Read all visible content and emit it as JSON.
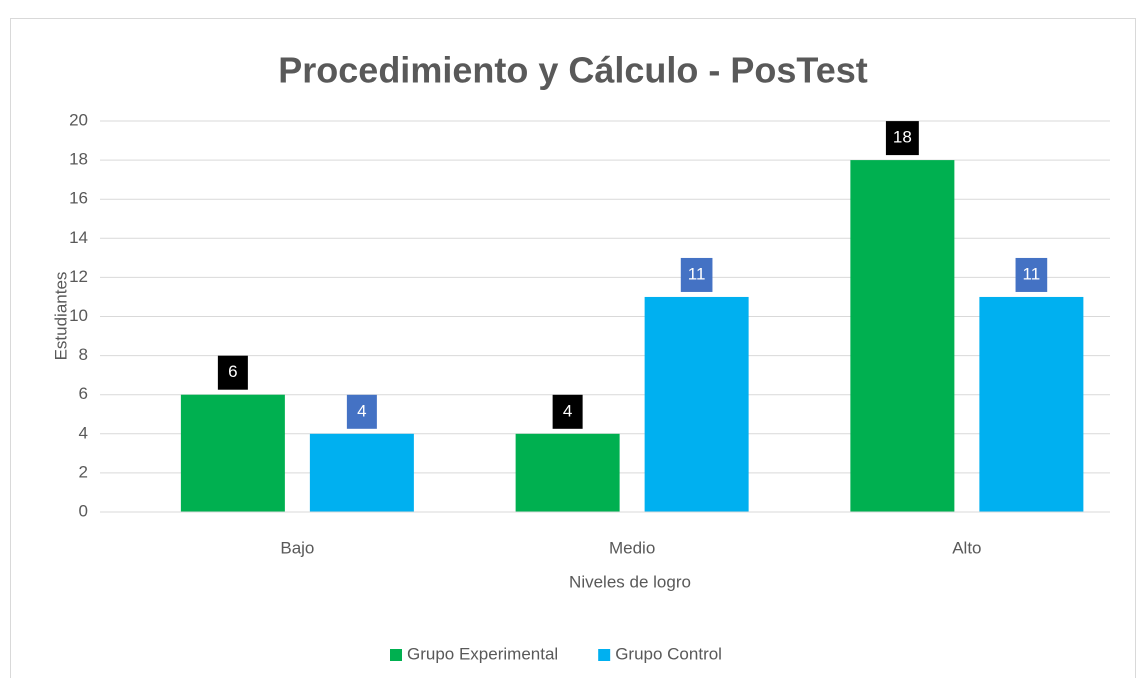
{
  "chart_data": {
    "type": "bar",
    "title": "Procedimiento y Cálculo - PosTest",
    "x_label": "Niveles de logro",
    "y_label": "Estudiantes",
    "categories": [
      "Bajo",
      "Medio",
      "Alto"
    ],
    "series": [
      {
        "name": "Grupo Experimental",
        "color": "#00b050",
        "label_color": "#000000",
        "values": [
          6,
          4,
          18
        ]
      },
      {
        "name": "Grupo Control",
        "color": "#00b0f0",
        "label_color": "#4472c4",
        "values": [
          4,
          11,
          11
        ]
      }
    ],
    "ylim": [
      0,
      20
    ],
    "yticks": [
      0,
      2,
      4,
      6,
      8,
      10,
      12,
      14,
      16,
      18,
      20
    ],
    "grid": true,
    "legend": "bottom"
  }
}
